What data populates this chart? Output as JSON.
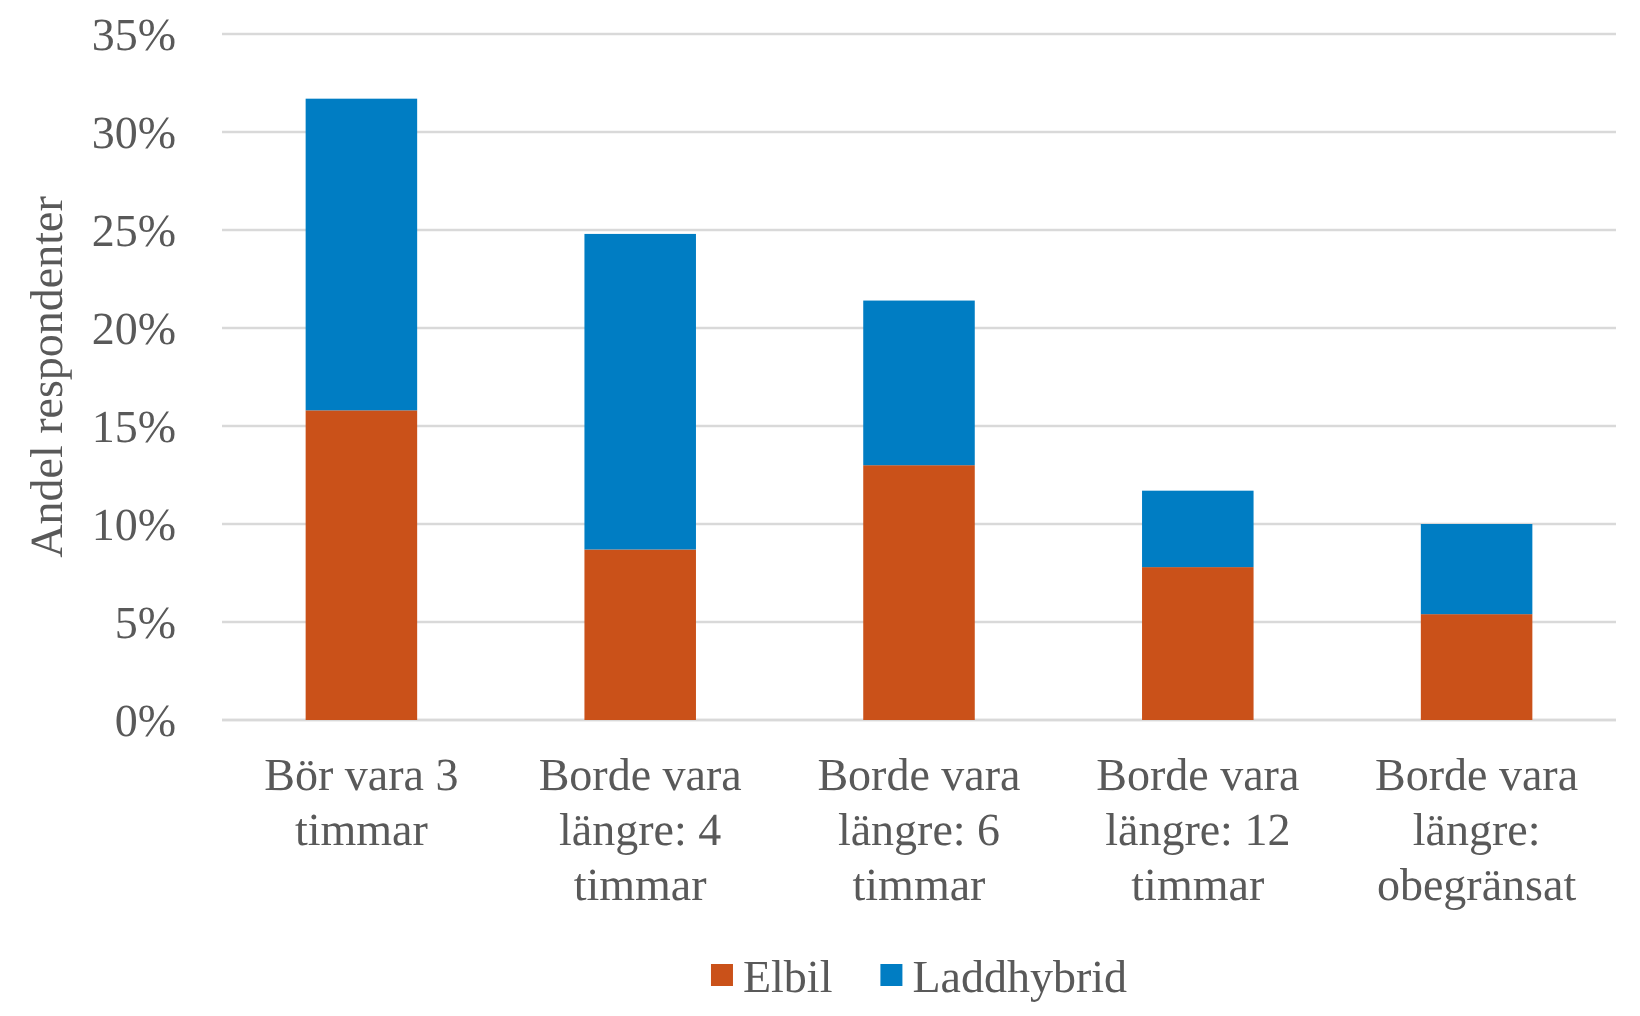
{
  "chart_data": {
    "type": "bar",
    "stacked": true,
    "categories": [
      "Bör vara 3 timmar",
      "Borde vara längre: 4 timmar",
      "Borde vara längre: 6 timmar",
      "Borde vara längre: 12 timmar",
      "Borde vara längre: obegränsat"
    ],
    "series": [
      {
        "name": "Elbil",
        "color": "#ca5119",
        "values": [
          15.8,
          8.7,
          13.0,
          7.8,
          5.4
        ]
      },
      {
        "name": "Laddhybrid",
        "color": "#007dc3",
        "values": [
          15.9,
          16.1,
          8.4,
          3.9,
          4.6
        ]
      }
    ],
    "ylabel": "Andel respondenter",
    "ylim": [
      0,
      35
    ],
    "yticks": [
      {
        "value": 0,
        "label": "0%"
      },
      {
        "value": 5,
        "label": "5%"
      },
      {
        "value": 10,
        "label": "10%"
      },
      {
        "value": 15,
        "label": "15%"
      },
      {
        "value": 20,
        "label": "20%"
      },
      {
        "value": 25,
        "label": "25%"
      },
      {
        "value": 30,
        "label": "30%"
      },
      {
        "value": 35,
        "label": "35%"
      }
    ],
    "grid": "y",
    "legend": "bottom"
  }
}
